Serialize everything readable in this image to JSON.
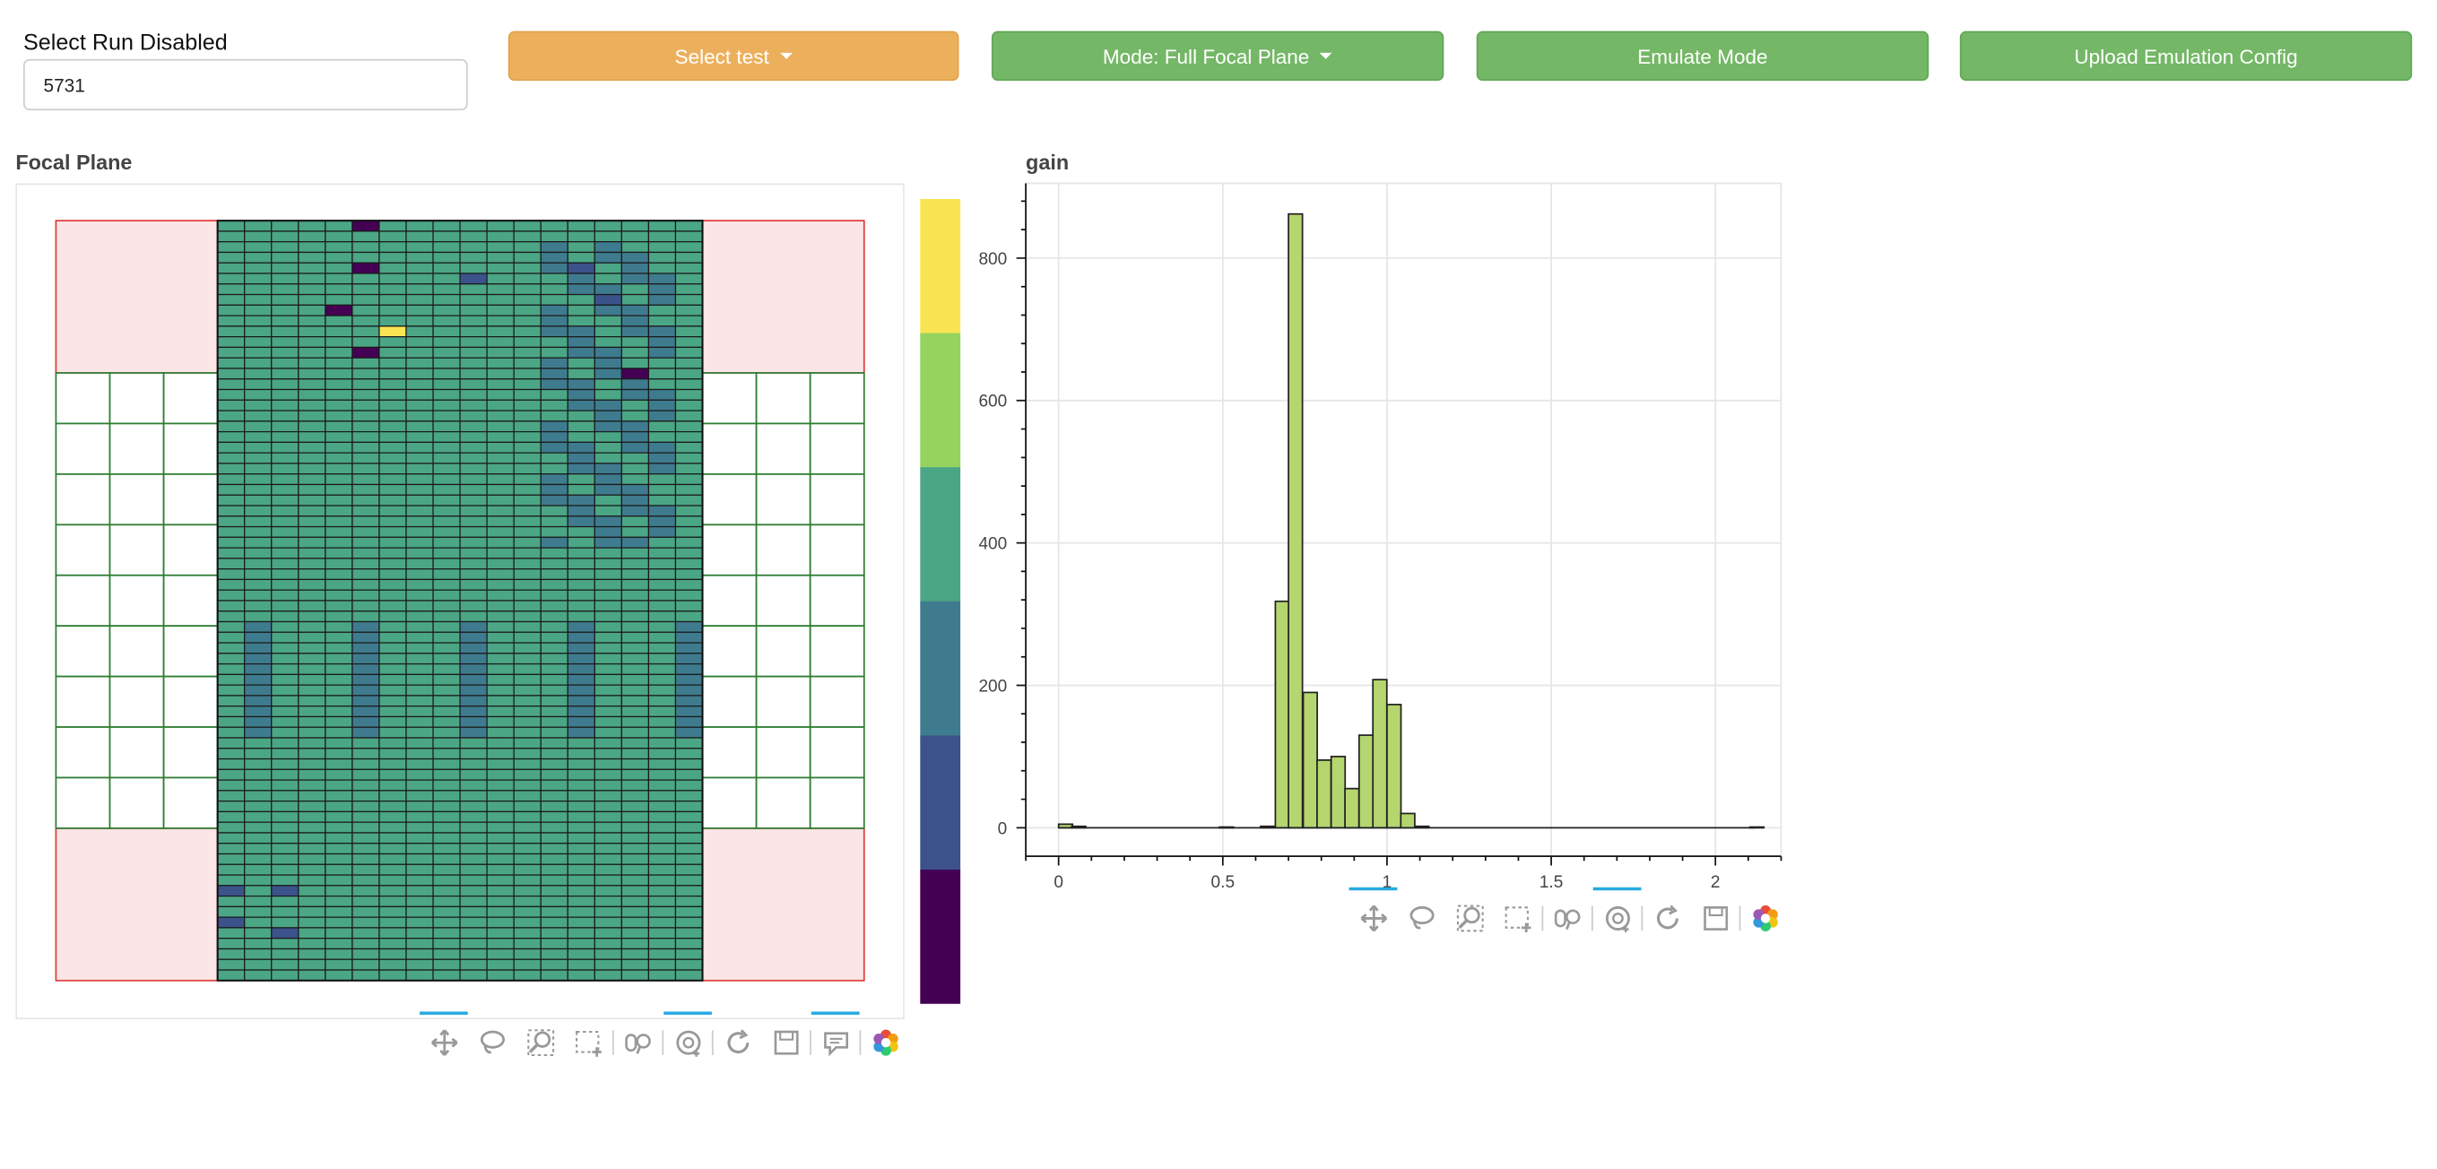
{
  "run_select": {
    "label": "Select Run Disabled",
    "value": "5731"
  },
  "buttons": {
    "select_test": "Select test",
    "mode": "Mode: Full Focal Plane",
    "emulate": "Emulate Mode",
    "upload": "Upload Emulation Config"
  },
  "colors": {
    "warning": "#ecb05c",
    "success": "#74b766",
    "inactive_fill": "#fbe5e6",
    "inactive_stroke": "#e03c3c",
    "module_stroke": "#2e7d32",
    "hist_fill": "#b5d66e",
    "viridis": [
      "#440154",
      "#3b528b",
      "#3f7b8e",
      "#4ba685",
      "#95d35e",
      "#f9e553"
    ]
  },
  "focal_plane": {
    "title": "Focal Plane"
  },
  "chart_data": {
    "type": "bar",
    "title": "gain",
    "xlim": [
      -0.1,
      2.2
    ],
    "ylim": [
      -40,
      905
    ],
    "x_ticks": [
      "0",
      "0.5",
      "1",
      "1.5",
      "2"
    ],
    "y_ticks": [
      "0",
      "200",
      "400",
      "600",
      "800"
    ],
    "grid": true,
    "bin_width": 0.0425,
    "bins": [
      {
        "x": 0.0,
        "y": 5
      },
      {
        "x": 0.04,
        "y": 2
      },
      {
        "x": 0.49,
        "y": 1
      },
      {
        "x": 0.615,
        "y": 2
      },
      {
        "x": 0.66,
        "y": 318
      },
      {
        "x": 0.7,
        "y": 862
      },
      {
        "x": 0.745,
        "y": 190
      },
      {
        "x": 0.787,
        "y": 95
      },
      {
        "x": 0.83,
        "y": 100
      },
      {
        "x": 0.872,
        "y": 55
      },
      {
        "x": 0.915,
        "y": 130
      },
      {
        "x": 0.957,
        "y": 208
      },
      {
        "x": 1.0,
        "y": 173
      },
      {
        "x": 1.042,
        "y": 20
      },
      {
        "x": 1.085,
        "y": 2
      },
      {
        "x": 2.105,
        "y": 1
      }
    ]
  },
  "toolbar_icons_left": [
    "pan-icon",
    "lasso-select-icon",
    "box-zoom-icon",
    "box-select-icon",
    "wheel-zoom-icon",
    "crosshair-icon",
    "reset-icon",
    "save-icon",
    "hover-icon",
    "bokeh-logo-icon"
  ],
  "toolbar_icons_right": [
    "pan-icon",
    "lasso-select-icon",
    "box-zoom-icon",
    "box-select-icon",
    "wheel-zoom-icon",
    "crosshair-icon",
    "reset-icon",
    "save-icon",
    "bokeh-logo-icon"
  ]
}
